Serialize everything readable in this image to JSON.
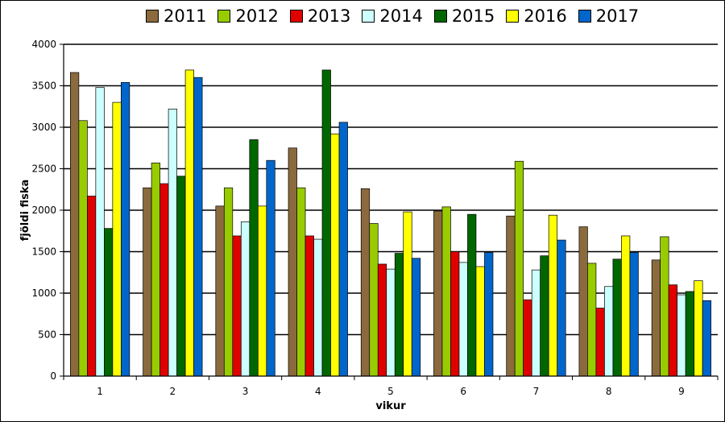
{
  "chart_data": {
    "type": "bar",
    "title": "",
    "xlabel": "vikur",
    "ylabel": "fjöldi fiska",
    "ylim": [
      0,
      4000
    ],
    "yticks": [
      "0",
      "500",
      "1000",
      "1500",
      "2000",
      "2500",
      "3000",
      "3500",
      "4000"
    ],
    "grid": true,
    "legend_position": "top",
    "categories": [
      "1",
      "2",
      "3",
      "4",
      "5",
      "6",
      "7",
      "8",
      "9"
    ],
    "series": [
      {
        "name": "2011",
        "color": "#8B6A3E",
        "values": [
          3660,
          2270,
          2050,
          2750,
          2260,
          1990,
          1930,
          1800,
          1400
        ]
      },
      {
        "name": "2012",
        "color": "#99CC00",
        "values": [
          3080,
          2570,
          2270,
          2270,
          1840,
          2040,
          2590,
          1360,
          1680
        ]
      },
      {
        "name": "2013",
        "color": "#E00000",
        "values": [
          2170,
          2320,
          1690,
          1690,
          1350,
          1500,
          920,
          820,
          1100
        ]
      },
      {
        "name": "2014",
        "color": "#CCFFFF",
        "values": [
          3480,
          3220,
          1860,
          1650,
          1290,
          1370,
          1280,
          1080,
          980
        ]
      },
      {
        "name": "2015",
        "color": "#006600",
        "values": [
          1780,
          2410,
          2850,
          3690,
          1480,
          1950,
          1450,
          1410,
          1020
        ]
      },
      {
        "name": "2016",
        "color": "#FFFF00",
        "values": [
          3300,
          3690,
          2050,
          2920,
          1980,
          1320,
          1940,
          1690,
          1150
        ]
      },
      {
        "name": "2017",
        "color": "#0066CC",
        "values": [
          3540,
          3600,
          2600,
          3060,
          1420,
          1490,
          1640,
          1490,
          910
        ]
      }
    ]
  }
}
